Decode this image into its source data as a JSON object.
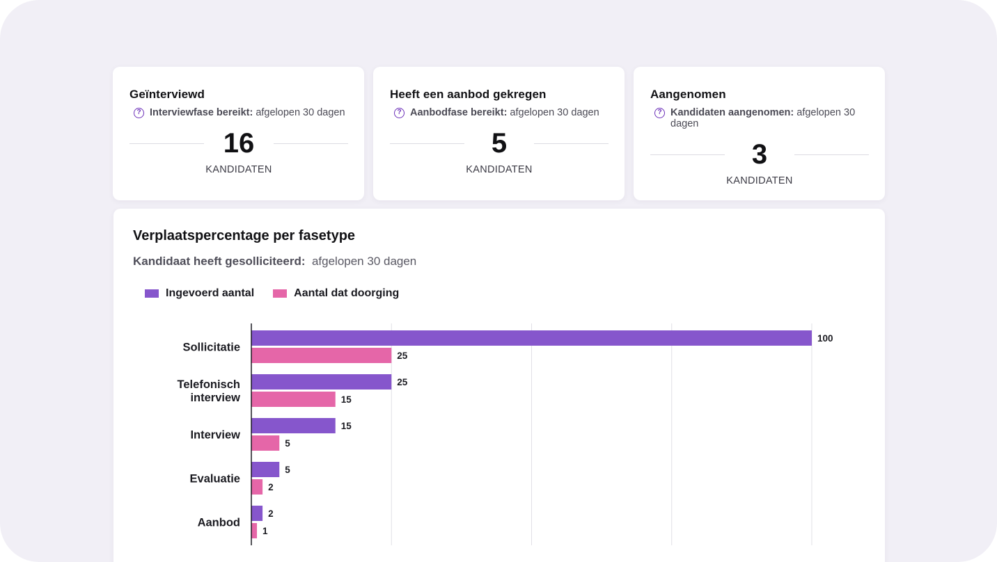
{
  "stats": [
    {
      "title": "Geïnterviewd",
      "sub_bold": "Interviewfase bereikt:",
      "sub_rest": " afgelopen 30 dagen",
      "value": "16",
      "unit": "KANDIDATEN"
    },
    {
      "title": "Heeft een aanbod gekregen",
      "sub_bold": "Aanbodfase bereikt:",
      "sub_rest": " afgelopen 30 dagen",
      "value": "5",
      "unit": "KANDIDATEN"
    },
    {
      "title": "Aangenomen",
      "sub_bold": "Kandidaten aangenomen:",
      "sub_rest": " afgelopen 30 dagen",
      "value": "3",
      "unit": "KANDIDATEN"
    }
  ],
  "help_icon": "question-circle-icon",
  "help_glyph": "?",
  "chart_data": {
    "type": "bar",
    "orientation": "horizontal",
    "title": "Verplaatspercentage per fasetype",
    "subtitle_bold": "Kandidaat heeft gesolliciteerd:",
    "subtitle_rest": "afgelopen 30 dagen",
    "categories": [
      [
        "Sollicitatie"
      ],
      [
        "Telefonisch",
        "interview"
      ],
      [
        "Interview"
      ],
      [
        "Evaluatie"
      ],
      [
        "Aanbod"
      ]
    ],
    "series": [
      {
        "name": "Ingevoerd aantal",
        "color": "#8656cc",
        "values": [
          100,
          25,
          15,
          5,
          2
        ]
      },
      {
        "name": "Aantal dat doorging",
        "color": "#e566a8",
        "values": [
          25,
          15,
          5,
          2,
          1
        ]
      }
    ],
    "xlim": [
      0,
      100
    ],
    "grid": true,
    "legend": "top-left"
  }
}
